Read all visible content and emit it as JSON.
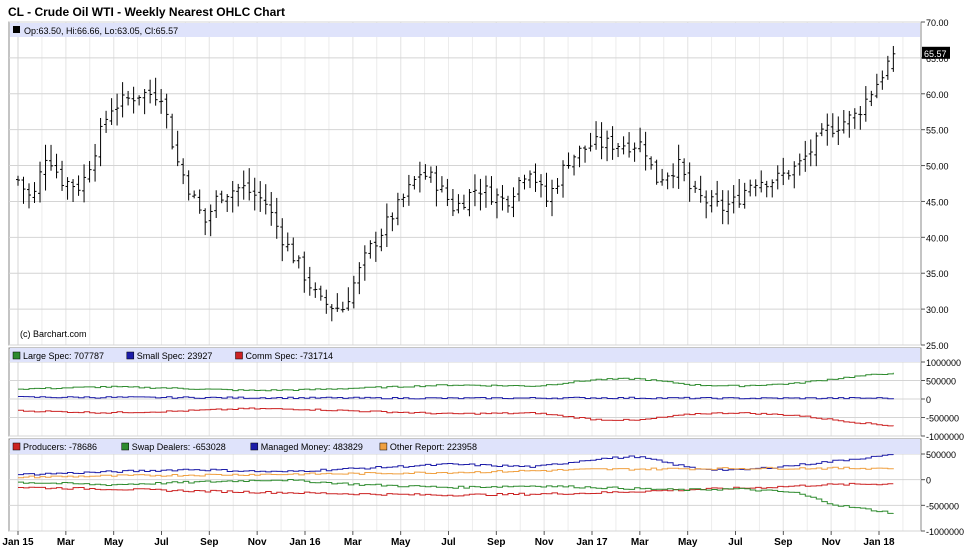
{
  "title": "CL - Crude Oil WTI - Weekly Nearest OHLC Chart",
  "watermark": "(c) Barchart.com",
  "x_axis_labels": [
    "Jan 15",
    "Mar",
    "May",
    "Jul",
    "Sep",
    "Nov",
    "Jan 16",
    "Mar",
    "May",
    "Jul",
    "Sep",
    "Nov",
    "Jan 17",
    "Mar",
    "May",
    "Jul",
    "Sep",
    "Nov",
    "Jan 18"
  ],
  "colors": {
    "grid": "#d4d4d4",
    "header_band": "#dfe3fb",
    "bars": "#000000",
    "large_spec": "#2e8b2e",
    "small_spec": "#1c1ca8",
    "comm_spec": "#cc2222",
    "producers": "#cc2222",
    "swap_dealers": "#2e8b2e",
    "managed_money": "#1c1ca8",
    "other_report": "#f0a040"
  },
  "chart_data": [
    {
      "type": "ohlc",
      "panel": "price",
      "legend": "Op:63.50, Hi:66.66, Lo:63.05, Cl:65.57",
      "last_close_label": "65.57",
      "ylim": [
        25,
        70
      ],
      "y_ticks": [
        "70.00",
        "65.00",
        "60.00",
        "55.00",
        "50.00",
        "45.00",
        "40.00",
        "35.00",
        "30.00",
        "25.00"
      ],
      "x_range": [
        "Jan 15",
        "Jan 18"
      ],
      "anchors": [
        {
          "x": 2015.0,
          "y": 48
        },
        {
          "x": 2015.05,
          "y": 45
        },
        {
          "x": 2015.1,
          "y": 52
        },
        {
          "x": 2015.15,
          "y": 48
        },
        {
          "x": 2015.22,
          "y": 47
        },
        {
          "x": 2015.32,
          "y": 58
        },
        {
          "x": 2015.42,
          "y": 60
        },
        {
          "x": 2015.5,
          "y": 60
        },
        {
          "x": 2015.55,
          "y": 51
        },
        {
          "x": 2015.65,
          "y": 42
        },
        {
          "x": 2015.7,
          "y": 46
        },
        {
          "x": 2015.78,
          "y": 47
        },
        {
          "x": 2015.86,
          "y": 45
        },
        {
          "x": 2015.92,
          "y": 40
        },
        {
          "x": 2015.98,
          "y": 36
        },
        {
          "x": 2016.05,
          "y": 31
        },
        {
          "x": 2016.13,
          "y": 30
        },
        {
          "x": 2016.22,
          "y": 38
        },
        {
          "x": 2016.32,
          "y": 44
        },
        {
          "x": 2016.4,
          "y": 49
        },
        {
          "x": 2016.45,
          "y": 48
        },
        {
          "x": 2016.52,
          "y": 44
        },
        {
          "x": 2016.6,
          "y": 47
        },
        {
          "x": 2016.7,
          "y": 45
        },
        {
          "x": 2016.78,
          "y": 50
        },
        {
          "x": 2016.84,
          "y": 45
        },
        {
          "x": 2016.92,
          "y": 51
        },
        {
          "x": 2017.0,
          "y": 53
        },
        {
          "x": 2017.1,
          "y": 53
        },
        {
          "x": 2017.18,
          "y": 53
        },
        {
          "x": 2017.22,
          "y": 48
        },
        {
          "x": 2017.3,
          "y": 50
        },
        {
          "x": 2017.35,
          "y": 46
        },
        {
          "x": 2017.45,
          "y": 44
        },
        {
          "x": 2017.5,
          "y": 45
        },
        {
          "x": 2017.56,
          "y": 48
        },
        {
          "x": 2017.64,
          "y": 48
        },
        {
          "x": 2017.72,
          "y": 50
        },
        {
          "x": 2017.82,
          "y": 55
        },
        {
          "x": 2017.92,
          "y": 57
        },
        {
          "x": 2018.0,
          "y": 62
        },
        {
          "x": 2018.05,
          "y": 65.57
        }
      ]
    },
    {
      "type": "line",
      "panel": "cot1",
      "ylim": [
        -1000000,
        1000000
      ],
      "y_ticks": [
        "1000000",
        "500000",
        "0",
        "-500000",
        "-1000000"
      ],
      "series": [
        {
          "name": "Large Spec: 707787",
          "key": "large_spec",
          "points": [
            [
              2015.0,
              270000
            ],
            [
              2015.3,
              330000
            ],
            [
              2015.5,
              300000
            ],
            [
              2015.8,
              230000
            ],
            [
              2016.0,
              250000
            ],
            [
              2016.2,
              300000
            ],
            [
              2016.5,
              380000
            ],
            [
              2016.8,
              350000
            ],
            [
              2017.0,
              520000
            ],
            [
              2017.15,
              550000
            ],
            [
              2017.35,
              380000
            ],
            [
              2017.5,
              350000
            ],
            [
              2017.7,
              420000
            ],
            [
              2017.9,
              600000
            ],
            [
              2018.05,
              707787
            ]
          ]
        },
        {
          "name": "Small Spec: 23927",
          "key": "small_spec",
          "points": [
            [
              2015.0,
              50000
            ],
            [
              2015.5,
              40000
            ],
            [
              2016.0,
              30000
            ],
            [
              2016.5,
              20000
            ],
            [
              2017.0,
              30000
            ],
            [
              2017.5,
              20000
            ],
            [
              2018.05,
              23927
            ]
          ]
        },
        {
          "name": "Comm Spec: -731714",
          "key": "comm_spec",
          "points": [
            [
              2015.0,
              -320000
            ],
            [
              2015.3,
              -370000
            ],
            [
              2015.5,
              -340000
            ],
            [
              2015.8,
              -260000
            ],
            [
              2016.0,
              -280000
            ],
            [
              2016.2,
              -330000
            ],
            [
              2016.5,
              -400000
            ],
            [
              2016.8,
              -380000
            ],
            [
              2017.0,
              -550000
            ],
            [
              2017.15,
              -580000
            ],
            [
              2017.35,
              -400000
            ],
            [
              2017.5,
              -370000
            ],
            [
              2017.7,
              -440000
            ],
            [
              2017.9,
              -620000
            ],
            [
              2018.05,
              -731714
            ]
          ]
        }
      ]
    },
    {
      "type": "line",
      "panel": "cot2",
      "ylim": [
        -1000000,
        500000
      ],
      "y_ticks": [
        "500000",
        "0",
        "-500000",
        "-1000000"
      ],
      "series": [
        {
          "name": "Producers: -78686",
          "key": "producers",
          "points": [
            [
              2015.0,
              -150000
            ],
            [
              2015.3,
              -180000
            ],
            [
              2015.6,
              -220000
            ],
            [
              2015.9,
              -250000
            ],
            [
              2016.2,
              -280000
            ],
            [
              2016.5,
              -300000
            ],
            [
              2016.8,
              -280000
            ],
            [
              2017.0,
              -260000
            ],
            [
              2017.3,
              -200000
            ],
            [
              2017.6,
              -150000
            ],
            [
              2017.8,
              -100000
            ],
            [
              2018.05,
              -78686
            ]
          ]
        },
        {
          "name": "Swap Dealers: -653028",
          "key": "swap_dealers",
          "points": [
            [
              2015.0,
              -50000
            ],
            [
              2015.3,
              -100000
            ],
            [
              2015.6,
              -50000
            ],
            [
              2015.9,
              0
            ],
            [
              2016.2,
              -100000
            ],
            [
              2016.5,
              -150000
            ],
            [
              2016.8,
              -120000
            ],
            [
              2017.0,
              -150000
            ],
            [
              2017.3,
              -200000
            ],
            [
              2017.5,
              -180000
            ],
            [
              2017.7,
              -250000
            ],
            [
              2017.85,
              -500000
            ],
            [
              2018.05,
              -653028
            ]
          ]
        },
        {
          "name": "Managed Money: 483829",
          "key": "managed_money",
          "points": [
            [
              2015.0,
              100000
            ],
            [
              2015.3,
              150000
            ],
            [
              2015.6,
              200000
            ],
            [
              2015.9,
              150000
            ],
            [
              2016.1,
              200000
            ],
            [
              2016.3,
              250000
            ],
            [
              2016.5,
              300000
            ],
            [
              2016.8,
              250000
            ],
            [
              2017.0,
              400000
            ],
            [
              2017.15,
              450000
            ],
            [
              2017.35,
              220000
            ],
            [
              2017.5,
              180000
            ],
            [
              2017.7,
              280000
            ],
            [
              2017.9,
              400000
            ],
            [
              2018.05,
              483829
            ]
          ]
        },
        {
          "name": "Other Report: 223958",
          "key": "other_report",
          "points": [
            [
              2015.0,
              50000
            ],
            [
              2015.4,
              80000
            ],
            [
              2015.8,
              100000
            ],
            [
              2016.2,
              120000
            ],
            [
              2016.6,
              150000
            ],
            [
              2017.0,
              200000
            ],
            [
              2017.5,
              220000
            ],
            [
              2018.05,
              223958
            ]
          ]
        }
      ]
    }
  ]
}
